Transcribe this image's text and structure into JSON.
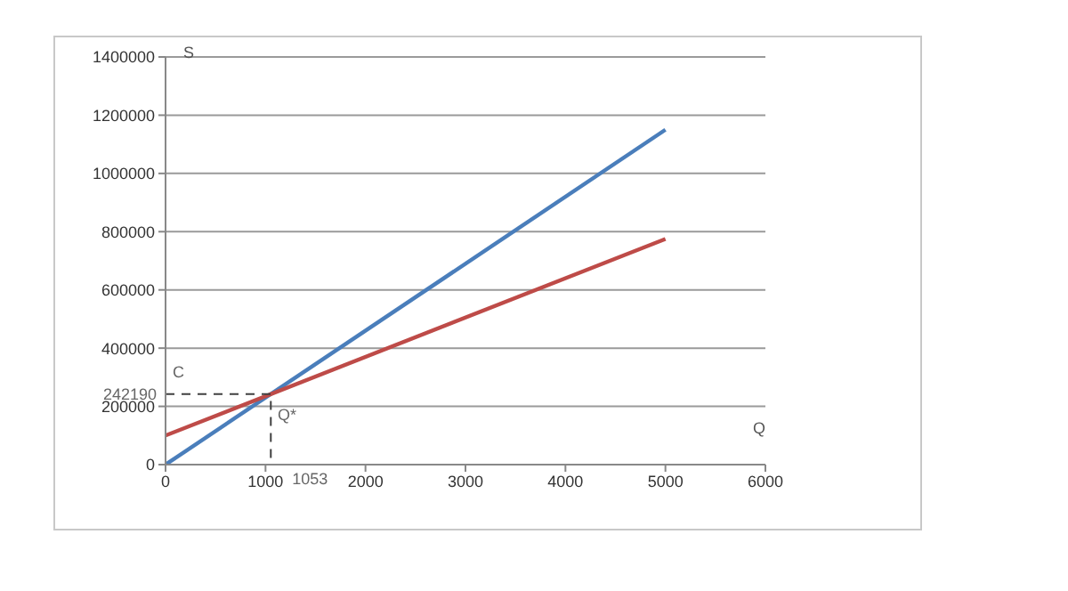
{
  "chart_data": {
    "type": "line",
    "xlabel": "Q",
    "ylabel": "S",
    "xlim": [
      0,
      6000
    ],
    "xticks": [
      0,
      1000,
      2000,
      3000,
      4000,
      5000,
      6000
    ],
    "ylim": [
      0,
      1400000
    ],
    "yticks": [
      0,
      200000,
      400000,
      600000,
      800000,
      1000000,
      1200000,
      1400000
    ],
    "grid": "y",
    "marker": "none",
    "series": [
      {
        "x": [
          0,
          5000
        ],
        "values": [
          0,
          1150000
        ],
        "color": "#4a7ebb",
        "line_style": "solid"
      },
      {
        "x": [
          0,
          5000
        ],
        "values": [
          100000,
          775000
        ],
        "color": "#be4b48",
        "line_style": "solid"
      },
      {
        "x": [
          0,
          1053,
          1053
        ],
        "values": [
          242190,
          242190,
          0
        ],
        "color": "#404040",
        "line_style": "dashed"
      }
    ],
    "annotations": [
      {
        "text": "242190",
        "x": 0,
        "y": 242190
      },
      "C",
      "Q*",
      {
        "text": "1053",
        "x": 1053,
        "y": 0
      }
    ]
  }
}
